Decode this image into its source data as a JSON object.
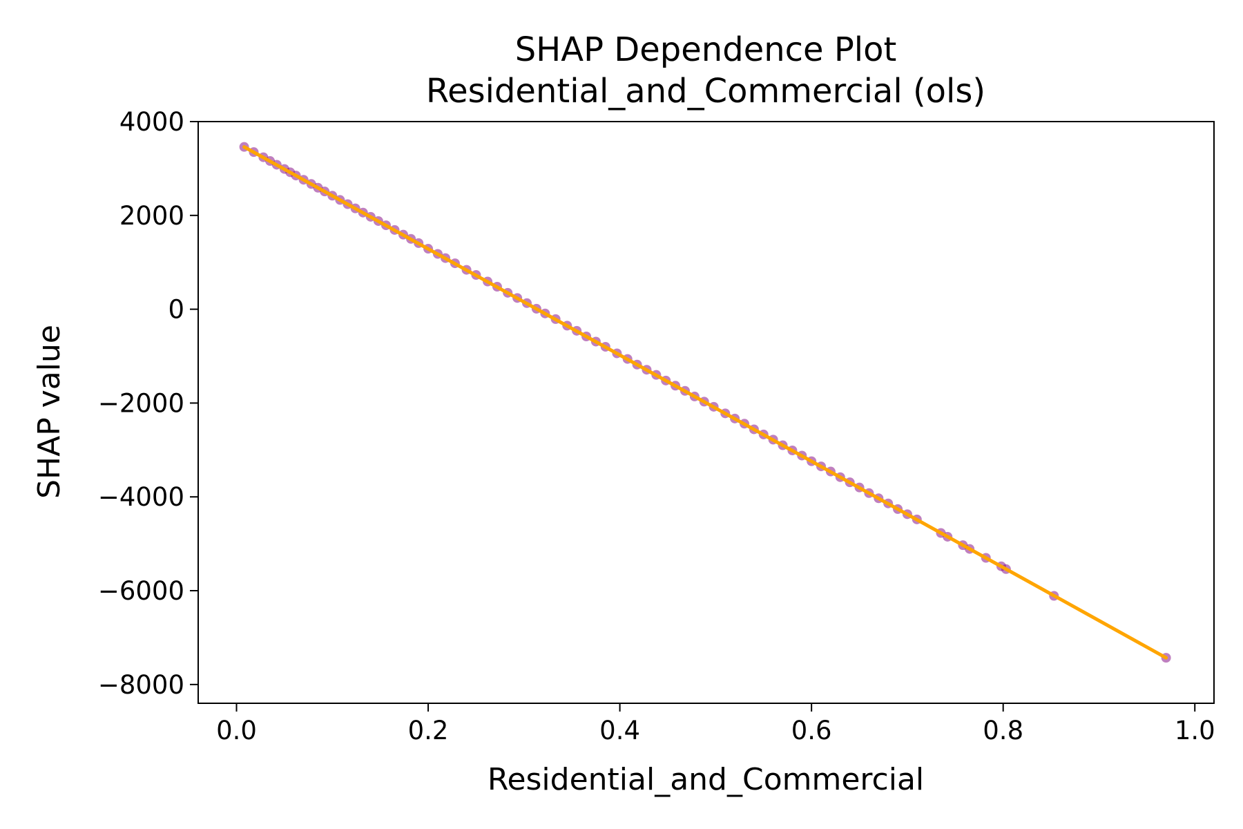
{
  "chart_data": {
    "type": "scatter",
    "title": "SHAP Dependence Plot",
    "subtitle": "Residential_and_Commercial (ols)",
    "xlabel": "Residential_and_Commercial",
    "ylabel": "SHAP value",
    "xlim": [
      -0.04,
      1.02
    ],
    "ylim": [
      -8400,
      4000
    ],
    "xticks": [
      0.0,
      0.2,
      0.4,
      0.6,
      0.8,
      1.0
    ],
    "xtick_labels": [
      "0.0",
      "0.2",
      "0.4",
      "0.6",
      "0.8",
      "1.0"
    ],
    "yticks": [
      4000,
      2000,
      0,
      -2000,
      -4000,
      -6000,
      -8000
    ],
    "ytick_labels": [
      "4000",
      "2000",
      "0",
      "−2000",
      "−4000",
      "−6000",
      "−8000"
    ],
    "grid": false,
    "colors": {
      "points": "#800080",
      "fit_line": "#FFA500",
      "axes": "#000000",
      "background": "#FFFFFF"
    },
    "series": [
      {
        "kind": "scatter",
        "x": [
          0.008,
          0.018,
          0.028,
          0.035,
          0.042,
          0.05,
          0.056,
          0.062,
          0.07,
          0.078,
          0.085,
          0.092,
          0.1,
          0.108,
          0.116,
          0.124,
          0.132,
          0.14,
          0.148,
          0.156,
          0.165,
          0.174,
          0.182,
          0.19,
          0.2,
          0.21,
          0.218,
          0.228,
          0.24,
          0.25,
          0.262,
          0.272,
          0.283,
          0.293,
          0.303,
          0.313,
          0.322,
          0.333,
          0.345,
          0.355,
          0.365,
          0.375,
          0.385,
          0.397,
          0.408,
          0.418,
          0.428,
          0.438,
          0.448,
          0.458,
          0.468,
          0.478,
          0.488,
          0.498,
          0.51,
          0.52,
          0.53,
          0.54,
          0.55,
          0.56,
          0.57,
          0.58,
          0.59,
          0.6,
          0.61,
          0.62,
          0.63,
          0.64,
          0.65,
          0.66,
          0.67,
          0.68,
          0.69,
          0.7,
          0.71,
          0.735,
          0.742,
          0.758,
          0.765,
          0.782,
          0.798,
          0.803,
          0.853,
          0.97
        ],
        "y": [
          3460,
          3350,
          3240,
          3160,
          3080,
          2990,
          2920,
          2850,
          2760,
          2670,
          2590,
          2510,
          2420,
          2330,
          2240,
          2150,
          2060,
          1970,
          1880,
          1790,
          1690,
          1590,
          1500,
          1410,
          1290,
          1180,
          1090,
          980,
          840,
          730,
          590,
          480,
          350,
          240,
          130,
          10,
          -90,
          -210,
          -350,
          -460,
          -580,
          -690,
          -800,
          -940,
          -1060,
          -1180,
          -1290,
          -1400,
          -1520,
          -1630,
          -1740,
          -1860,
          -1970,
          -2080,
          -2220,
          -2330,
          -2440,
          -2560,
          -2670,
          -2780,
          -2900,
          -3010,
          -3120,
          -3240,
          -3350,
          -3460,
          -3580,
          -3690,
          -3800,
          -3920,
          -4030,
          -4140,
          -4260,
          -4370,
          -4480,
          -4770,
          -4850,
          -5030,
          -5110,
          -5300,
          -5480,
          -5540,
          -6110,
          -7430
        ]
      },
      {
        "kind": "line",
        "x": [
          0.008,
          0.97
        ],
        "y": [
          3460,
          -7430
        ]
      }
    ]
  }
}
